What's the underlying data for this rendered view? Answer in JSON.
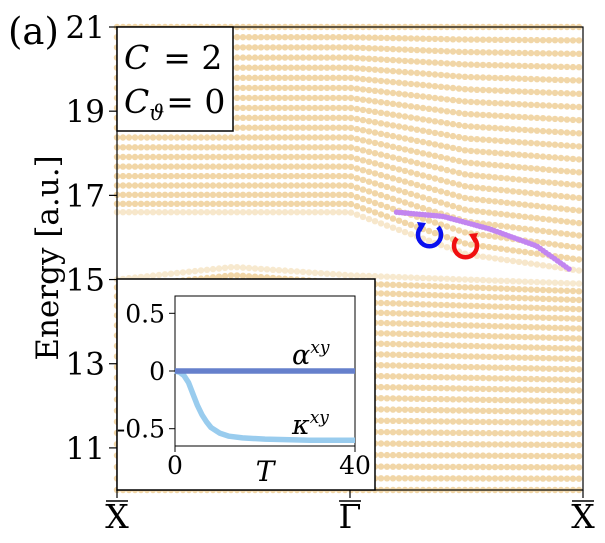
{
  "figure": {
    "panel_label": "(a)",
    "chern_label": "C  = 2",
    "chern_theta_label": "Cϑ = 0"
  },
  "chart_data": [
    {
      "type": "scatter",
      "title": "",
      "xlabel": "",
      "ylabel": "Energy [a.u.]",
      "x_tick_labels": [
        "X̅",
        "Γ̅",
        "X̅"
      ],
      "x_tick_positions": [
        -1,
        0,
        1
      ],
      "xlim": [
        -1,
        1
      ],
      "ylim": [
        10,
        21
      ],
      "y_ticks": [
        11,
        13,
        15,
        17,
        19,
        21
      ],
      "grid": false,
      "legend": "none",
      "colors": {
        "bulk": "#f0d3a0",
        "edge": "#c285f0",
        "cw_arrow": "#0a10ee",
        "ccw_arrow": "#f01010"
      },
      "series": [
        {
          "role": "upper_bulk_band",
          "band_bottom_edge": {
            "x": [
              -1,
              -0.5,
              0,
              0.5,
              1
            ],
            "y": [
              16.6,
              16.6,
              16.6,
              15.6,
              15.2
            ]
          },
          "top": 21
        },
        {
          "role": "lower_bulk_band",
          "band_top_edge": {
            "x": [
              -1,
              -0.5,
              0,
              0.5,
              1
            ],
            "y": [
              15.0,
              15.3,
              15.1,
              15.0,
              14.9
            ]
          },
          "bottom": 10
        },
        {
          "role": "edge_state",
          "x": [
            0.2,
            0.4,
            0.6,
            0.8,
            0.94
          ],
          "y": [
            16.6,
            16.5,
            16.2,
            15.8,
            15.25
          ]
        }
      ]
    },
    {
      "type": "line",
      "title": "",
      "xlabel": "T",
      "ylabel": "",
      "xlim": [
        0,
        40
      ],
      "ylim": [
        -0.65,
        0.65
      ],
      "x_ticks": [
        0,
        40
      ],
      "y_ticks": [
        0.5,
        0,
        -0.5
      ],
      "y_tick_labels": [
        "0.5",
        "0",
        "-0.5"
      ],
      "grid": false,
      "legend": "none",
      "series": [
        {
          "name": "αxy",
          "color": "#6680cc",
          "x": [
            0,
            10,
            20,
            30,
            40
          ],
          "y": [
            0,
            0,
            0,
            0,
            0
          ]
        },
        {
          "name": "κxy",
          "color": "#99ccee",
          "x": [
            0,
            1,
            2,
            3,
            4,
            5,
            6,
            7,
            8,
            10,
            12,
            15,
            20,
            30,
            40
          ],
          "y": [
            0.0,
            -0.01,
            -0.04,
            -0.1,
            -0.2,
            -0.3,
            -0.38,
            -0.44,
            -0.49,
            -0.54,
            -0.565,
            -0.58,
            -0.59,
            -0.6,
            -0.6
          ]
        }
      ]
    }
  ]
}
